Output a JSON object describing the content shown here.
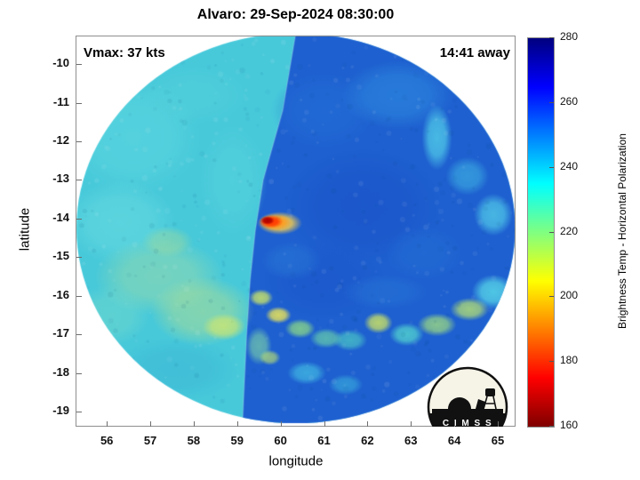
{
  "logo": {
    "text": "C I M S S"
  },
  "chart_data": {
    "type": "heatmap",
    "title": "Alvaro: 29-Sep-2024 08:30:00",
    "xlabel": "longitude",
    "ylabel": "latitude",
    "xlim": [
      55.28,
      65.41
    ],
    "ylim": [
      -19.39,
      -9.26
    ],
    "x_ticks": [
      56,
      57,
      58,
      59,
      60,
      61,
      62,
      63,
      64,
      65
    ],
    "y_ticks": [
      -10,
      -11,
      -12,
      -13,
      -14,
      -15,
      -16,
      -17,
      -18,
      -19
    ],
    "grid": false,
    "annotations": [
      {
        "text": "Vmax: 37 kts",
        "position": "top-left"
      },
      {
        "text": "14:41 away",
        "position": "top-right"
      }
    ],
    "storm": {
      "name": "Alvaro",
      "datetime": "29-Sep-2024 08:30:00",
      "vmax_kts": 37,
      "overpass_offset": "14:41 away",
      "warm_core_lon": 59.75,
      "warm_core_lat": -14.1
    },
    "colorbar": {
      "label": "Brightness Temp - Horizontal Polarization",
      "ticks": [
        280,
        260,
        240,
        220,
        200,
        180,
        160
      ],
      "min": 160,
      "max": 280,
      "colormap": "jet reversed (160 = dark red, 280 = dark blue)",
      "gradient": [
        [
          "#00007f",
          0
        ],
        [
          "#0000ff",
          12.5
        ],
        [
          "#00ffff",
          37.5
        ],
        [
          "#80ff80",
          50
        ],
        [
          "#ffff00",
          62.5
        ],
        [
          "#ff0000",
          87.5
        ],
        [
          "#7f0000",
          100
        ]
      ]
    },
    "swath": {
      "center_lon": 60.35,
      "center_lat": -14.25,
      "radius_deg": 5.05,
      "left_base_color": "#47c9da",
      "right_base_color": "#1e60d0",
      "seam": [
        [
          60.35,
          -9.2
        ],
        [
          60.05,
          -11.2
        ],
        [
          59.6,
          -13.0
        ],
        [
          59.42,
          -14.3
        ],
        [
          59.3,
          -15.6
        ],
        [
          59.22,
          -17.0
        ],
        [
          59.12,
          -19.4
        ]
      ]
    },
    "features": [
      {
        "lon": 56.6,
        "lat": -11.9,
        "rx": 1.6,
        "ry": 1.5,
        "c": "#5fd8e0",
        "a": 0.55
      },
      {
        "lon": 56.3,
        "lat": -14.1,
        "rx": 1.3,
        "ry": 1.1,
        "c": "#6fdfe2",
        "a": 0.5
      },
      {
        "lon": 58.0,
        "lat": -10.8,
        "rx": 1.3,
        "ry": 0.8,
        "c": "#56d2da",
        "a": 0.45
      },
      {
        "lon": 58.9,
        "lat": -13.0,
        "rx": 0.8,
        "ry": 1.5,
        "c": "#59d4de",
        "a": 0.45
      },
      {
        "lon": 57.2,
        "lat": -15.5,
        "rx": 1.5,
        "ry": 1.0,
        "c": "#9cdcaa",
        "a": 0.55
      },
      {
        "lon": 58.2,
        "lat": -16.4,
        "rx": 1.2,
        "ry": 0.9,
        "c": "#abdd96",
        "a": 0.6
      },
      {
        "lon": 58.7,
        "lat": -16.8,
        "rx": 0.5,
        "ry": 0.35,
        "c": "#d2e86e",
        "a": 0.75
      },
      {
        "lon": 57.4,
        "lat": -14.6,
        "rx": 0.6,
        "ry": 0.4,
        "c": "#b9e18c",
        "a": 0.4
      },
      {
        "lon": 57.6,
        "lat": -17.9,
        "rx": 1.4,
        "ry": 0.8,
        "c": "#3cb7d6",
        "a": 0.55
      },
      {
        "lon": 56.1,
        "lat": -16.5,
        "rx": 0.9,
        "ry": 0.8,
        "c": "#79dcca",
        "a": 0.45
      },
      {
        "lon": 61.9,
        "lat": -13.7,
        "rx": 1.8,
        "ry": 1.5,
        "c": "#1a52c8",
        "a": 0.55
      },
      {
        "lon": 61.0,
        "lat": -15.6,
        "rx": 1.4,
        "ry": 1.0,
        "c": "#1b55cb",
        "a": 0.5
      },
      {
        "lon": 61.0,
        "lat": -11.2,
        "rx": 1.2,
        "ry": 1.0,
        "c": "#2471d8",
        "a": 0.5
      },
      {
        "lon": 62.7,
        "lat": -10.8,
        "rx": 1.3,
        "ry": 0.9,
        "c": "#3090e2",
        "a": 0.55
      },
      {
        "lon": 63.6,
        "lat": -11.9,
        "rx": 0.35,
        "ry": 0.85,
        "c": "#52cfe9",
        "a": 0.8
      },
      {
        "lon": 64.3,
        "lat": -12.9,
        "rx": 0.5,
        "ry": 0.5,
        "c": "#45c2e5",
        "a": 0.55
      },
      {
        "lon": 64.9,
        "lat": -13.9,
        "rx": 0.45,
        "ry": 0.55,
        "c": "#55d2ea",
        "a": 0.75
      },
      {
        "lon": 63.3,
        "lat": -14.9,
        "rx": 0.9,
        "ry": 0.7,
        "c": "#2470d6",
        "a": 0.5
      },
      {
        "lon": 64.9,
        "lat": -15.9,
        "rx": 0.5,
        "ry": 0.45,
        "c": "#58d8e8",
        "a": 0.85
      },
      {
        "lon": 64.35,
        "lat": -16.35,
        "rx": 0.45,
        "ry": 0.3,
        "c": "#bce670",
        "a": 0.8
      },
      {
        "lon": 63.6,
        "lat": -16.75,
        "rx": 0.45,
        "ry": 0.3,
        "c": "#9fdd80",
        "a": 0.8
      },
      {
        "lon": 62.9,
        "lat": -17.0,
        "rx": 0.4,
        "ry": 0.3,
        "c": "#55d8cf",
        "a": 0.8
      },
      {
        "lon": 62.25,
        "lat": -16.7,
        "rx": 0.33,
        "ry": 0.28,
        "c": "#cfe562",
        "a": 0.85
      },
      {
        "lon": 61.6,
        "lat": -17.15,
        "rx": 0.4,
        "ry": 0.28,
        "c": "#4fcfc5",
        "a": 0.7
      },
      {
        "lon": 61.05,
        "lat": -17.1,
        "rx": 0.38,
        "ry": 0.26,
        "c": "#6ed8a8",
        "a": 0.7
      },
      {
        "lon": 60.45,
        "lat": -16.85,
        "rx": 0.35,
        "ry": 0.25,
        "c": "#8fdc85",
        "a": 0.8
      },
      {
        "lon": 59.95,
        "lat": -16.5,
        "rx": 0.3,
        "ry": 0.22,
        "c": "#e8e25a",
        "a": 0.9
      },
      {
        "lon": 59.55,
        "lat": -16.05,
        "rx": 0.28,
        "ry": 0.22,
        "c": "#cde766",
        "a": 0.85
      },
      {
        "lon": 59.5,
        "lat": -17.3,
        "rx": 0.3,
        "ry": 0.5,
        "c": "#82daa6",
        "a": 0.65
      },
      {
        "lon": 59.75,
        "lat": -17.6,
        "rx": 0.25,
        "ry": 0.2,
        "c": "#bfe46e",
        "a": 0.7
      },
      {
        "lon": 60.6,
        "lat": -18.0,
        "rx": 0.45,
        "ry": 0.3,
        "c": "#46c4e4",
        "a": 0.7
      },
      {
        "lon": 61.5,
        "lat": -18.3,
        "rx": 0.4,
        "ry": 0.27,
        "c": "#3db6dd",
        "a": 0.6
      },
      {
        "lon": 62.4,
        "lat": -15.9,
        "rx": 1.0,
        "ry": 0.45,
        "c": "#2a7ad8",
        "a": 0.45
      },
      {
        "lon": 60.25,
        "lat": -15.1,
        "rx": 0.7,
        "ry": 0.5,
        "c": "#2e84da",
        "a": 0.4
      },
      {
        "lon": 59.98,
        "lat": -14.12,
        "rx": 0.52,
        "ry": 0.3,
        "c": "#ffd24a",
        "a": 0.9
      },
      {
        "lon": 59.88,
        "lat": -14.1,
        "rx": 0.38,
        "ry": 0.22,
        "c": "#ff9a1e",
        "a": 0.95
      },
      {
        "lon": 59.78,
        "lat": -14.08,
        "rx": 0.28,
        "ry": 0.17,
        "c": "#ff3800",
        "a": 1
      },
      {
        "lon": 59.7,
        "lat": -14.05,
        "rx": 0.16,
        "ry": 0.11,
        "c": "#b00000",
        "a": 1
      }
    ]
  }
}
